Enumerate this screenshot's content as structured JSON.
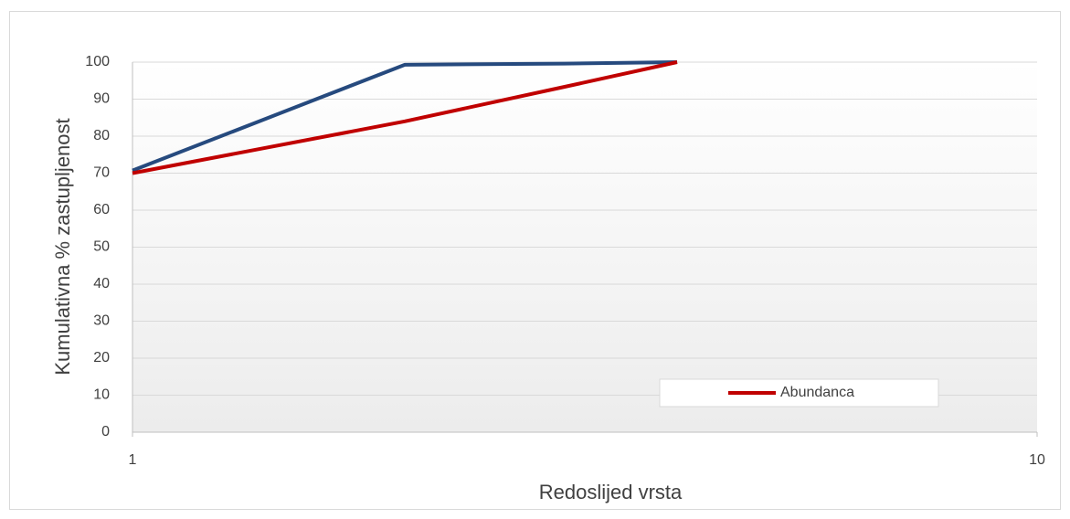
{
  "chart_data": {
    "type": "line",
    "x_label": "Redoslijed vrsta",
    "y_label": "Kumulativna % zastupljenost",
    "x": [
      1,
      2,
      3,
      4
    ],
    "series": [
      {
        "color": "#264a7e",
        "values": [
          70.7,
          99.3,
          99.6,
          100
        ]
      },
      {
        "name": "Abundanca",
        "color": "#c00000",
        "values": [
          70,
          84,
          93.3,
          100
        ]
      }
    ],
    "xlog": true,
    "xlim": [
      1,
      10
    ],
    "xticks": [
      1,
      10
    ],
    "ylim": [
      0,
      100
    ],
    "yticks": [
      0,
      10,
      20,
      30,
      40,
      50,
      60,
      70,
      80,
      90,
      100
    ],
    "grid": true,
    "legend": "lower right"
  }
}
